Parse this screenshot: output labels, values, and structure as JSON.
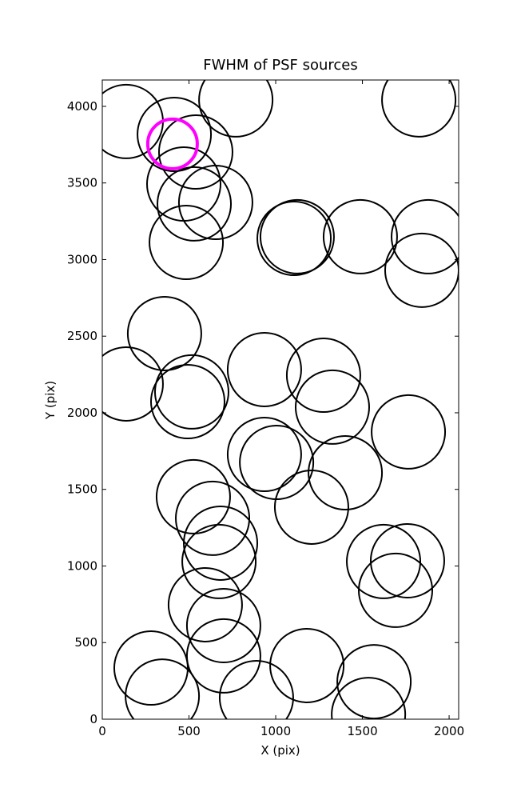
{
  "chart_data": {
    "type": "scatter",
    "title": "FWHM of PSF sources",
    "x_label": "X (pix)",
    "y_label": "Y (pix)",
    "xlim": [
      0,
      2055
    ],
    "ylim": [
      0,
      4172
    ],
    "xticks": [
      0,
      500,
      1000,
      1500,
      2000
    ],
    "yticks": [
      0,
      500,
      1000,
      1500,
      2000,
      2500,
      3000,
      3500,
      4000
    ],
    "series": [
      {
        "color": "#000000",
        "x": [
          138,
          415,
          770,
          1825,
          539,
          470,
          530,
          654,
          484,
          1106,
          1124,
          1488,
          1880,
          1843,
          359,
          138,
          516,
          493,
          935,
          1276,
          1327,
          1765,
          935,
          1005,
          1401,
          1207,
          525,
          636,
          682,
          673,
          1622,
          1760,
          1691,
          594,
          700,
          700,
          281,
          346,
          889,
          1180,
          1567,
          1535
        ],
        "values": [
          3901,
          3817,
          4042,
          4042,
          3702,
          3493,
          3363,
          3373,
          3112,
          3138,
          3149,
          3149,
          3149,
          2930,
          2517,
          2188,
          2136,
          2073,
          2282,
          2245,
          2037,
          1875,
          1728,
          1676,
          1608,
          1384,
          1452,
          1311,
          1149,
          1029,
          1029,
          1034,
          841,
          747,
          611,
          413,
          334,
          151,
          141,
          350,
          245,
          31
        ]
      },
      {
        "color": "#ff00ff",
        "x": [
          405
        ],
        "values": [
          3755
        ]
      }
    ]
  }
}
